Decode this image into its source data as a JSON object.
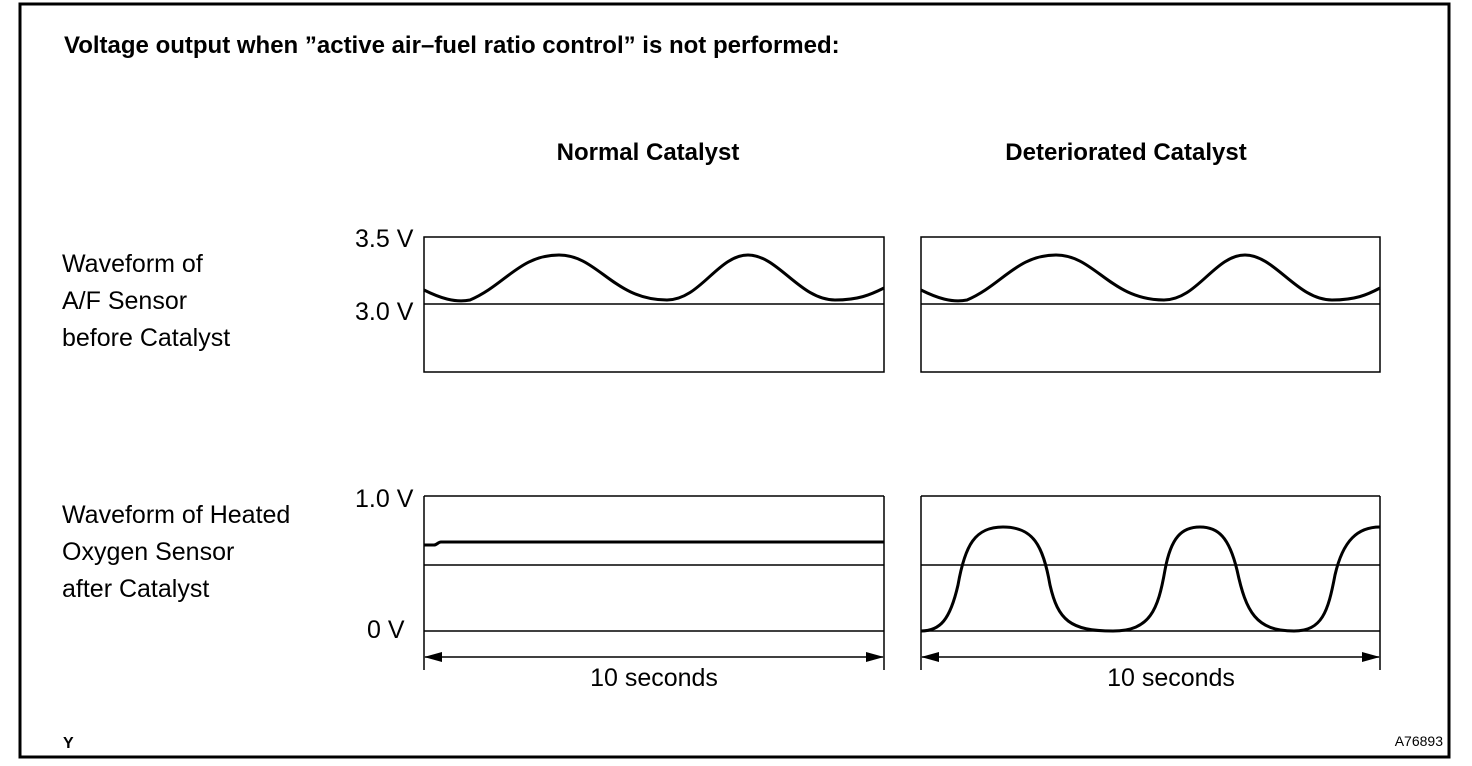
{
  "title": "Voltage output when ”active air–fuel ratio control” is not performed:",
  "columns": {
    "normal": "Normal Catalyst",
    "deteriorated": "Deteriorated Catalyst"
  },
  "rows": {
    "af_sensor": {
      "label_lines": [
        "Waveform of",
        "A/F Sensor",
        "before Catalyst"
      ],
      "axis_top": "3.5 V",
      "axis_mid": "3.0 V"
    },
    "o2_sensor": {
      "label_lines": [
        "Waveform of Heated",
        "Oxygen Sensor",
        "after Catalyst"
      ],
      "axis_top": "1.0 V",
      "axis_bottom": "0 V"
    }
  },
  "time_span_label": "10 seconds",
  "corner_left": "Y",
  "corner_right": "A76893",
  "colors": {
    "line": "#000000",
    "background": "#ffffff"
  }
}
